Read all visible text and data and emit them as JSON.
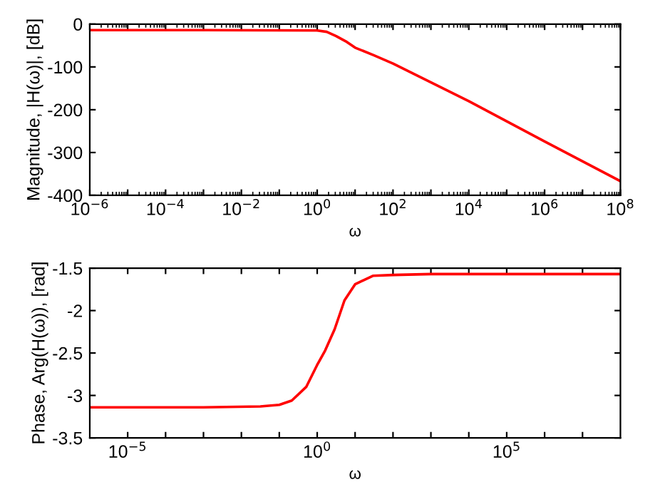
{
  "chart_data": [
    {
      "type": "line",
      "xlabel": "ω",
      "ylabel": "Magnitude, |H(ω)|, [dB]",
      "log": "x",
      "grid": false,
      "legend": false,
      "series": [
        {
          "color": "#ff0000",
          "x": [
            1e-06,
            0.001,
            1,
            1.778,
            3.162,
            5.623,
            10,
            31.62,
            100,
            10000,
            1000000,
            100000000
          ],
          "values": [
            -14,
            -14,
            -15,
            -18,
            -28,
            -40,
            -55,
            -73,
            -92,
            -180,
            -274,
            -367
          ]
        }
      ],
      "xlim": [
        1e-06,
        100000000
      ],
      "ylim": [
        -400,
        0
      ],
      "xticks": [
        {
          "value": 1e-06,
          "label": "10$^{−6}$"
        },
        {
          "value": 1e-05,
          "label": null
        },
        {
          "value": 0.0001,
          "label": "10$^{−4}$"
        },
        {
          "value": 0.001,
          "label": null
        },
        {
          "value": 0.01,
          "label": "10$^{−2}$"
        },
        {
          "value": 0.1,
          "label": null
        },
        {
          "value": 1,
          "label": "10$^{0}$"
        },
        {
          "value": 10,
          "label": null
        },
        {
          "value": 100,
          "label": "10$^{2}$"
        },
        {
          "value": 1000,
          "label": null
        },
        {
          "value": 10000,
          "label": "10$^{4}$"
        },
        {
          "value": 100000,
          "label": null
        },
        {
          "value": 1000000,
          "label": "10$^{6}$"
        },
        {
          "value": 10000000,
          "label": null
        },
        {
          "value": 100000000,
          "label": "10$^{8}$"
        }
      ],
      "yticks": [
        -400,
        -300,
        -200,
        -100,
        0
      ]
    },
    {
      "type": "line",
      "xlabel": "ω",
      "ylabel": "Phase, Arg(H(ω)), [rad]",
      "log": "x",
      "grid": false,
      "legend": false,
      "series": [
        {
          "color": "#ff0000",
          "x": [
            1e-06,
            0.001,
            0.03162,
            0.1,
            0.2138,
            0.5129,
            1,
            1.622,
            2.884,
            5.248,
            10,
            29.51,
            100,
            1000,
            100000000
          ],
          "values": [
            -3.14,
            -3.14,
            -3.13,
            -3.11,
            -3.06,
            -2.9,
            -2.64,
            -2.47,
            -2.22,
            -1.88,
            -1.69,
            -1.59,
            -1.58,
            -1.57,
            -1.57
          ]
        }
      ],
      "xlim": [
        1e-06,
        100000000
      ],
      "ylim": [
        -3.5,
        -1.5
      ],
      "xticks": [
        {
          "value": 1e-05,
          "label": "10$^{−5}$"
        },
        {
          "value": 0.0001,
          "label": null
        },
        {
          "value": 0.001,
          "label": null
        },
        {
          "value": 0.01,
          "label": null
        },
        {
          "value": 0.1,
          "label": null
        },
        {
          "value": 1,
          "label": "10$^{0}$"
        },
        {
          "value": 10,
          "label": null
        },
        {
          "value": 100,
          "label": null
        },
        {
          "value": 1000,
          "label": null
        },
        {
          "value": 10000,
          "label": null
        },
        {
          "value": 100000,
          "label": "10$^{5}$"
        },
        {
          "value": 1000000,
          "label": null
        },
        {
          "value": 10000000,
          "label": null
        }
      ],
      "yticks": [
        -3.5,
        -3,
        -2.5,
        -2,
        -1.5
      ]
    }
  ]
}
